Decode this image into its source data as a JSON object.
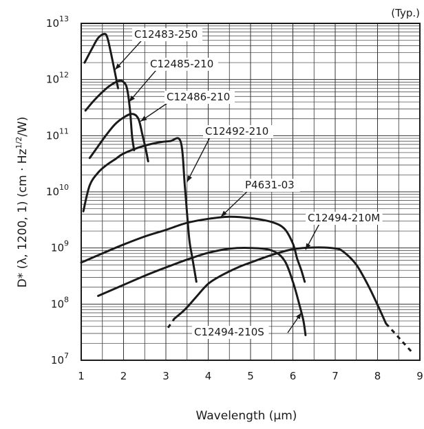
{
  "chart_data": {
    "type": "line",
    "title": "",
    "note": "(Typ.)",
    "xlabel": "Wavelength (µm)",
    "ylabel": "D* (λ, 1200, 1) (cm · Hz1/2/W)",
    "ylabel_parts": {
      "main": "D* (λ, 1200, 1) (cm · Hz",
      "sup": "1/2",
      "tail": "/W)"
    },
    "xlim": [
      1,
      9
    ],
    "ylim": [
      10000000,
      10000000000000
    ],
    "yscale": "log",
    "grid": true,
    "x_ticks": [
      "1",
      "2",
      "3",
      "4",
      "5",
      "6",
      "7",
      "8",
      "9"
    ],
    "y_ticks": [
      {
        "base": "10",
        "exp": "7"
      },
      {
        "base": "10",
        "exp": "8"
      },
      {
        "base": "10",
        "exp": "9"
      },
      {
        "base": "10",
        "exp": "10"
      },
      {
        "base": "10",
        "exp": "11"
      },
      {
        "base": "10",
        "exp": "12"
      },
      {
        "base": "10",
        "exp": "13"
      }
    ],
    "series": [
      {
        "name": "C12483-250",
        "x": [
          1.08,
          1.25,
          1.4,
          1.55,
          1.62,
          1.7,
          1.8,
          1.87
        ],
        "y": [
          2000000000000.0,
          3500000000000.0,
          5500000000000.0,
          6500000000000.0,
          5500000000000.0,
          3000000000000.0,
          1300000000000.0,
          700000000000.0
        ]
      },
      {
        "name": "C12485-210",
        "x": [
          1.1,
          1.3,
          1.5,
          1.7,
          1.9,
          2.0,
          2.08,
          2.15,
          2.2,
          2.25
        ],
        "y": [
          280000000000.0,
          420000000000.0,
          600000000000.0,
          800000000000.0,
          950000000000.0,
          900000000000.0,
          700000000000.0,
          300000000000.0,
          100000000000.0,
          55000000000.0
        ]
      },
      {
        "name": "C12486-210",
        "x": [
          1.2,
          1.4,
          1.6,
          1.8,
          2.0,
          2.2,
          2.35,
          2.45,
          2.52,
          2.58
        ],
        "y": [
          40000000000.0,
          65000000000.0,
          105000000000.0,
          160000000000.0,
          210000000000.0,
          245000000000.0,
          200000000000.0,
          100000000000.0,
          60000000000.0,
          35000000000.0
        ]
      },
      {
        "name": "C12492-210",
        "x": [
          1.05,
          1.2,
          1.4,
          1.6,
          1.8,
          2.0,
          2.4,
          2.8,
          3.1,
          3.35,
          3.45,
          3.55,
          3.62,
          3.72
        ],
        "y": [
          4500000000.0,
          13000000000.0,
          22000000000.0,
          30000000000.0,
          38000000000.0,
          48000000000.0,
          63000000000.0,
          75000000000.0,
          80000000000.0,
          78000000000.0,
          12000000000.0,
          1500000000.0,
          700000000.0,
          250000000.0
        ]
      },
      {
        "name": "P4631-03",
        "x": [
          1.0,
          1.5,
          2.0,
          2.5,
          3.0,
          3.5,
          4.0,
          4.5,
          5.0,
          5.5,
          5.8,
          6.0,
          6.1,
          6.2,
          6.28
        ],
        "y": [
          550000000.0,
          800000000.0,
          1150000000.0,
          1600000000.0,
          2100000000.0,
          2800000000.0,
          3300000000.0,
          3600000000.0,
          3400000000.0,
          2900000000.0,
          2200000000.0,
          1200000000.0,
          650000000.0,
          400000000.0,
          250000000.0
        ]
      },
      {
        "name": "C12494-210S",
        "x": [
          1.4,
          2.0,
          2.5,
          3.0,
          3.5,
          4.0,
          4.5,
          5.0,
          5.5,
          5.8,
          6.0,
          6.15,
          6.25,
          6.3
        ],
        "y": [
          140000000.0,
          220000000.0,
          320000000.0,
          450000000.0,
          620000000.0,
          820000000.0,
          970000000.0,
          1000000000.0,
          900000000.0,
          600000000.0,
          250000000.0,
          100000000.0,
          50000000.0,
          28000000.0
        ]
      },
      {
        "name": "C12494-210M",
        "x": [
          3.2,
          3.45,
          3.7,
          4.0,
          4.3,
          4.7,
          5.0,
          5.5,
          6.0,
          6.5,
          7.0,
          7.2,
          7.5,
          7.8,
          8.05,
          8.2
        ],
        "y": [
          55000000.0,
          80000000.0,
          130000000.0,
          230000000.0,
          320000000.0,
          450000000.0,
          550000000.0,
          750000000.0,
          950000000.0,
          1020000000.0,
          980000000.0,
          850000000.0,
          500000000.0,
          200000000.0,
          80000000.0,
          45000000.0
        ]
      }
    ],
    "dashed_extensions": [
      {
        "series": "C12494-210M",
        "x": [
          8.2,
          8.45,
          8.65,
          8.85
        ],
        "y": [
          45000000.0,
          28000000.0,
          19000000.0,
          13000000.0
        ]
      },
      {
        "series": "C12494-210M",
        "x": [
          3.05,
          3.2
        ],
        "y": [
          38000000.0,
          55000000.0
        ]
      }
    ]
  }
}
